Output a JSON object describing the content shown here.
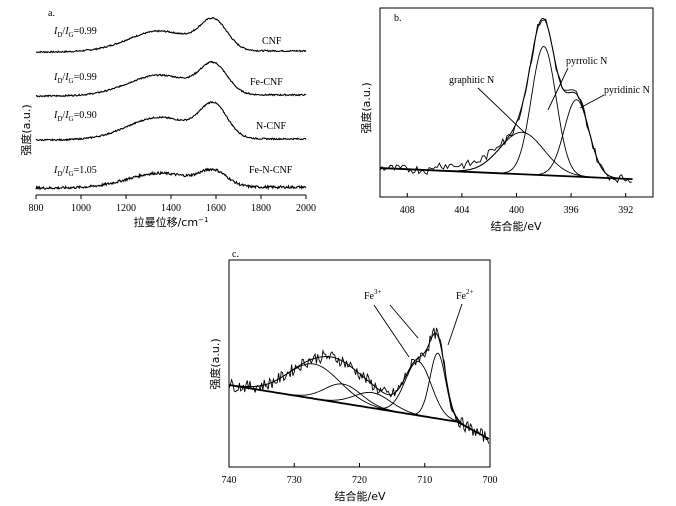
{
  "chart_data": [
    {
      "panel": "a",
      "type": "line",
      "title": "a.",
      "xlabel": "拉曼位移/cm",
      "xlabel_sup": "−1",
      "ylabel": "强度(a.u.)",
      "xlim": [
        800,
        2000
      ],
      "xticks": [
        800,
        1000,
        1200,
        1400,
        1600,
        1800,
        2000
      ],
      "series": [
        {
          "name": "CNF",
          "ratio_prefix": "I",
          "ratio_d": "D",
          "ratio_sep": "/",
          "ratio_prefix2": "I",
          "ratio_g": "G",
          "ratio_value": "=0.99",
          "d_height": 0.55,
          "g_height": 0.78
        },
        {
          "name": "Fe-CNF",
          "ratio_prefix": "I",
          "ratio_d": "D",
          "ratio_sep": "/",
          "ratio_prefix2": "I",
          "ratio_g": "G",
          "ratio_value": "=0.99",
          "d_height": 0.55,
          "g_height": 0.78
        },
        {
          "name": "N-CNF",
          "ratio_prefix": "I",
          "ratio_d": "D",
          "ratio_sep": "/",
          "ratio_prefix2": "I",
          "ratio_g": "G",
          "ratio_value": "=0.90",
          "d_height": 0.6,
          "g_height": 0.88
        },
        {
          "name": "Fe-N-CNF",
          "ratio_prefix": "I",
          "ratio_d": "D",
          "ratio_sep": "/",
          "ratio_prefix2": "I",
          "ratio_g": "G",
          "ratio_value": "=1.05",
          "d_height": 0.5,
          "g_height": 0.52
        }
      ]
    },
    {
      "panel": "b",
      "type": "line",
      "title": "b.",
      "xlabel": "结合能/eV",
      "ylabel": "强度(a.u.)",
      "xlim": [
        410,
        390
      ],
      "xticks": [
        408,
        404,
        400,
        396,
        392
      ],
      "peaks": [
        {
          "name": "graphitic N",
          "center": 399.6,
          "height": 0.3,
          "width": 1.6
        },
        {
          "name": "pyrrolic N",
          "center": 398.0,
          "height": 0.92,
          "width": 0.9
        },
        {
          "name": "pyridinic N",
          "center": 395.6,
          "height": 0.55,
          "width": 0.9
        }
      ]
    },
    {
      "panel": "c",
      "type": "line",
      "title": "c.",
      "xlabel": "结合能/eV",
      "ylabel": "强度(a.u.)",
      "xlim": [
        740,
        700
      ],
      "xticks": [
        740,
        730,
        720,
        710,
        700
      ],
      "peaks": [
        {
          "name": "satellite-1",
          "center": 727.0,
          "height": 0.45,
          "width": 4.0
        },
        {
          "name": "satellite-2",
          "center": 722.5,
          "height": 0.25,
          "width": 2.8
        },
        {
          "name": "satellite-3",
          "center": 718.0,
          "height": 0.2,
          "width": 2.8
        },
        {
          "name": "Fe3+ peak",
          "center": 711.0,
          "height": 0.7,
          "width": 2.0
        },
        {
          "name": "Fe2+ peak",
          "center": 708.0,
          "height": 0.85,
          "width": 1.2
        }
      ],
      "labels": {
        "fe3_base": "Fe",
        "fe3_sup": "3+",
        "fe2_base": "Fe",
        "fe2_sup": "2+"
      }
    }
  ]
}
